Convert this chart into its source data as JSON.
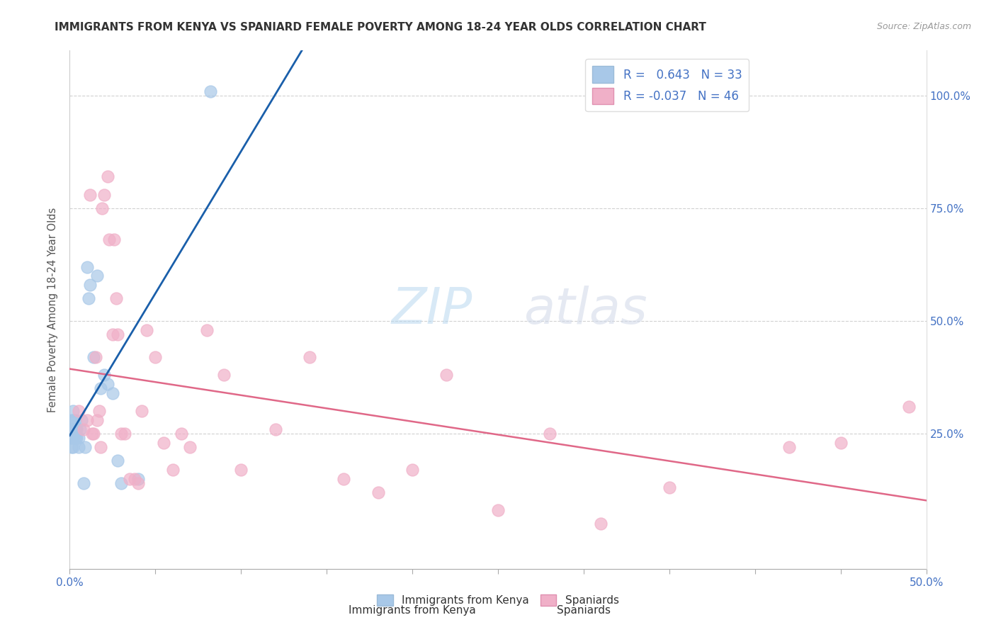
{
  "title": "IMMIGRANTS FROM KENYA VS SPANIARD FEMALE POVERTY AMONG 18-24 YEAR OLDS CORRELATION CHART",
  "source": "Source: ZipAtlas.com",
  "ylabel": "Female Poverty Among 18-24 Year Olds",
  "xlim": [
    0.0,
    0.5
  ],
  "ylim": [
    -0.05,
    1.1
  ],
  "ytick_vals_right": [
    0.25,
    0.5,
    0.75,
    1.0
  ],
  "ytick_labels_right": [
    "25.0%",
    "50.0%",
    "75.0%",
    "100.0%"
  ],
  "legend_r_kenya": "0.643",
  "legend_n_kenya": "33",
  "legend_r_spaniard": "-0.037",
  "legend_n_spaniard": "46",
  "watermark_zip": "ZIP",
  "watermark_atlas": "atlas",
  "color_kenya": "#a8c8e8",
  "color_spaniard": "#f0b0c8",
  "color_kenya_line": "#1a5faa",
  "color_spaniard_line": "#e06888",
  "background_color": "#ffffff",
  "grid_color": "#cccccc",
  "kenya_x": [
    0.001,
    0.001,
    0.001,
    0.001,
    0.002,
    0.002,
    0.002,
    0.002,
    0.002,
    0.003,
    0.003,
    0.003,
    0.004,
    0.004,
    0.005,
    0.005,
    0.006,
    0.007,
    0.008,
    0.009,
    0.01,
    0.011,
    0.012,
    0.014,
    0.016,
    0.018,
    0.02,
    0.022,
    0.025,
    0.028,
    0.03,
    0.04,
    0.082
  ],
  "kenya_y": [
    0.22,
    0.24,
    0.26,
    0.28,
    0.22,
    0.24,
    0.26,
    0.28,
    0.3,
    0.24,
    0.26,
    0.28,
    0.24,
    0.26,
    0.22,
    0.24,
    0.26,
    0.28,
    0.14,
    0.22,
    0.62,
    0.55,
    0.58,
    0.42,
    0.6,
    0.35,
    0.38,
    0.36,
    0.34,
    0.19,
    0.14,
    0.15,
    1.01
  ],
  "spaniard_x": [
    0.005,
    0.008,
    0.01,
    0.012,
    0.013,
    0.014,
    0.015,
    0.016,
    0.017,
    0.018,
    0.019,
    0.02,
    0.022,
    0.023,
    0.025,
    0.026,
    0.027,
    0.028,
    0.03,
    0.032,
    0.035,
    0.038,
    0.04,
    0.042,
    0.045,
    0.05,
    0.055,
    0.06,
    0.065,
    0.07,
    0.08,
    0.09,
    0.1,
    0.12,
    0.14,
    0.16,
    0.18,
    0.2,
    0.22,
    0.25,
    0.28,
    0.31,
    0.35,
    0.42,
    0.45,
    0.49
  ],
  "spaniard_y": [
    0.3,
    0.26,
    0.28,
    0.78,
    0.25,
    0.25,
    0.42,
    0.28,
    0.3,
    0.22,
    0.75,
    0.78,
    0.82,
    0.68,
    0.47,
    0.68,
    0.55,
    0.47,
    0.25,
    0.25,
    0.15,
    0.15,
    0.14,
    0.3,
    0.48,
    0.42,
    0.23,
    0.17,
    0.25,
    0.22,
    0.48,
    0.38,
    0.17,
    0.26,
    0.42,
    0.15,
    0.12,
    0.17,
    0.38,
    0.08,
    0.25,
    0.05,
    0.13,
    0.22,
    0.23,
    0.31
  ],
  "kenya_line_x0": 0.0,
  "kenya_line_x1": 0.5,
  "spaniard_line_x0": 0.0,
  "spaniard_line_x1": 0.5
}
